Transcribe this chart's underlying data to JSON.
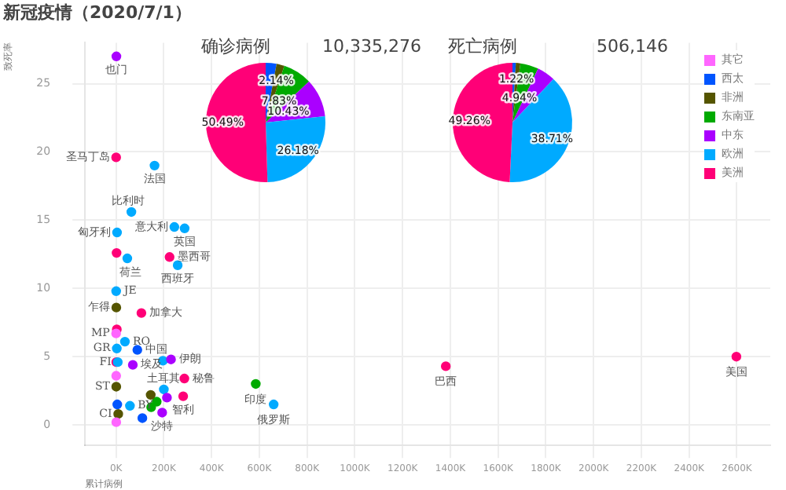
{
  "chart_data": [
    {
      "type": "scatter",
      "title": "新冠疫情（2020/7/1）",
      "xlabel": "累计病例",
      "ylabel": "致死率",
      "xlim": [
        -130000,
        2740000
      ],
      "ylim": [
        -1.5,
        28
      ],
      "xticks": [
        {
          "value": 0,
          "label": "0K"
        },
        {
          "value": 200000,
          "label": "200K"
        },
        {
          "value": 400000,
          "label": "400K"
        },
        {
          "value": 600000,
          "label": "600K"
        },
        {
          "value": 800000,
          "label": "800K"
        },
        {
          "value": 1000000,
          "label": "1000K"
        },
        {
          "value": 1200000,
          "label": "1200K"
        },
        {
          "value": 1400000,
          "label": "1400K"
        },
        {
          "value": 1600000,
          "label": "1600K"
        },
        {
          "value": 1800000,
          "label": "1800K"
        },
        {
          "value": 2000000,
          "label": "2000K"
        },
        {
          "value": 2200000,
          "label": "2200K"
        },
        {
          "value": 2400000,
          "label": "2400K"
        },
        {
          "value": 2600000,
          "label": "2600K"
        }
      ],
      "yticks": [
        0,
        5,
        10,
        15,
        20,
        25
      ],
      "grid": true,
      "legend": "top right",
      "marker": "circle",
      "series": [
        {
          "name": "其它",
          "color": "#ff66ff",
          "x": [
            30,
            700,
            400
          ],
          "values": [
            6.7,
            0.2,
            3.6
          ]
        },
        {
          "name": "西太",
          "color": "#0055ff",
          "x": [
            89000,
            5000,
            110000
          ],
          "values": [
            5.5,
            1.5,
            0.5
          ]
        },
        {
          "name": "非洲",
          "color": "#555500",
          "x": [
            900,
            700,
            9000,
            145000
          ],
          "values": [
            8.6,
            2.8,
            0.8,
            2.2
          ]
        },
        {
          "name": "东南亚",
          "color": "#00aa00",
          "x": [
            585000,
            170000,
            147000
          ],
          "values": [
            3.0,
            1.7,
            1.3
          ]
        },
        {
          "name": "中东",
          "color": "#aa00ff",
          "x": [
            230000,
            193000,
            70000,
            213000,
            1200
          ],
          "values": [
            4.8,
            0.9,
            4.4,
            2.0,
            27.0
          ]
        },
        {
          "name": "欧洲",
          "color": "#00aaff",
          "x": [
            660000,
            244000,
            287000,
            258000,
            64000,
            161000,
            4000,
            47000,
            37000,
            200000,
            196000,
            300,
            3000,
            7000,
            58000
          ],
          "values": [
            1.5,
            14.5,
            14.4,
            11.7,
            15.6,
            19.0,
            14.1,
            12.2,
            6.1,
            2.6,
            4.7,
            9.8,
            5.6,
            4.6,
            1.4
          ]
        },
        {
          "name": "美洲",
          "color": "#ff0077",
          "x": [
            2598000,
            1381000,
            286000,
            281000,
            224000,
            106000,
            200,
            2000,
            3000,
            1000
          ],
          "values": [
            5.0,
            4.3,
            3.4,
            2.1,
            12.3,
            8.2,
            19.6,
            12.6,
            7.0,
            4.6
          ]
        }
      ],
      "annotations": [
        {
          "text": "美国",
          "x": 2598000,
          "y": 5.0
        },
        {
          "text": "巴西",
          "x": 1381000,
          "y": 4.3
        },
        {
          "text": "印度",
          "x": 585000,
          "y": 3.0
        },
        {
          "text": "俄罗斯",
          "x": 660000,
          "y": 1.5
        },
        {
          "text": "秘鲁",
          "x": 286000,
          "y": 3.4
        },
        {
          "text": "智利",
          "x": 281000,
          "y": 2.1
        },
        {
          "text": "墨西哥",
          "x": 224000,
          "y": 12.3
        },
        {
          "text": "加拿大",
          "x": 106000,
          "y": 8.2
        },
        {
          "text": "圣马丁岛",
          "x": 200,
          "y": 19.6
        },
        {
          "text": "意大利",
          "x": 244000,
          "y": 14.5
        },
        {
          "text": "英国",
          "x": 287000,
          "y": 14.4
        },
        {
          "text": "西班牙",
          "x": 258000,
          "y": 11.7
        },
        {
          "text": "比利时",
          "x": 64000,
          "y": 15.6
        },
        {
          "text": "法国",
          "x": 161000,
          "y": 19.0
        },
        {
          "text": "匈牙利",
          "x": 4000,
          "y": 14.1
        },
        {
          "text": "荷兰",
          "x": 47000,
          "y": 12.2
        },
        {
          "text": "RO",
          "x": 37000,
          "y": 6.1
        },
        {
          "text": "伊朗",
          "x": 230000,
          "y": 4.8
        },
        {
          "text": "沙特",
          "x": 193000,
          "y": 0.9
        },
        {
          "text": "埃及",
          "x": 70000,
          "y": 4.4
        },
        {
          "text": "也门",
          "x": 1200,
          "y": 27.0
        },
        {
          "text": "中国",
          "x": 89000,
          "y": 5.5
        },
        {
          "text": "乍得",
          "x": 900,
          "y": 8.6
        },
        {
          "text": "JE",
          "x": 300,
          "y": 9.8
        },
        {
          "text": "MP",
          "x": 30,
          "y": 6.7
        },
        {
          "text": "GR",
          "x": 3000,
          "y": 5.6
        },
        {
          "text": "FI",
          "x": 7000,
          "y": 4.6
        },
        {
          "text": "ST",
          "x": 700,
          "y": 2.8
        },
        {
          "text": "BY",
          "x": 58000,
          "y": 1.4
        },
        {
          "text": "CI",
          "x": 9000,
          "y": 0.8
        },
        {
          "text": "土耳其",
          "x": 200000,
          "y": 2.6
        }
      ]
    },
    {
      "type": "pie",
      "title": "确诊病例",
      "annotations": [
        "10,335,276"
      ],
      "categories": [
        null,
        null,
        null,
        null,
        null,
        null
      ],
      "values": [
        2.93,
        2.14,
        7.83,
        10.43,
        26.18,
        50.49
      ],
      "colors": [
        "#0055ff",
        "#555500",
        "#00aa00",
        "#aa00ff",
        "#00aaff",
        "#ff0077"
      ],
      "value_labels": [
        null,
        "2.14%",
        "7.83%",
        "10.43%",
        "26.18%",
        "50.49%"
      ]
    },
    {
      "type": "pie",
      "title": "死亡病例",
      "annotations": [
        "506,146"
      ],
      "categories": [
        null,
        null,
        null,
        null,
        null,
        null
      ],
      "values": [
        0.9,
        1.22,
        4.94,
        4.97,
        38.71,
        49.26
      ],
      "colors": [
        "#0055ff",
        "#555500",
        "#00aa00",
        "#aa00ff",
        "#00aaff",
        "#ff0077"
      ],
      "value_labels": [
        null,
        "1.22%",
        "4.94%",
        null,
        "38.71%",
        "49.26%"
      ]
    }
  ]
}
